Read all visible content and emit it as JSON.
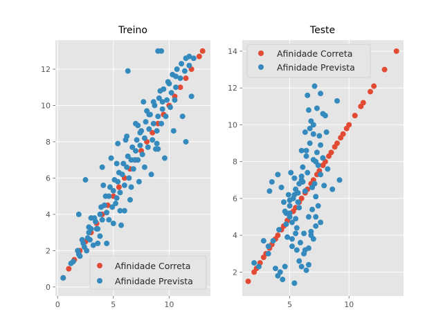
{
  "chart_data": [
    {
      "type": "scatter",
      "title": "Treino",
      "xlim": [
        -0.2,
        13.7
      ],
      "ylim": [
        -0.5,
        13.6
      ],
      "xticks": [
        0,
        5,
        10
      ],
      "yticks": [
        0,
        2,
        4,
        6,
        8,
        10,
        12
      ],
      "grid": true,
      "legend": {
        "placement": "lower-right"
      },
      "series": [
        {
          "name": "Afinidade Correta",
          "color": "#E24A33",
          "x": [
            0.5,
            1.0,
            1.5,
            2.0,
            2.5,
            3.0,
            3.5,
            4.0,
            4.5,
            5.0,
            5.5,
            6.0,
            6.5,
            7.0,
            7.5,
            8.0,
            8.5,
            9.0,
            9.5,
            10.0,
            10.5,
            11.0,
            11.5,
            12.0,
            12.7,
            13.0
          ],
          "y": [
            0.5,
            1.0,
            1.5,
            2.0,
            2.5,
            3.0,
            3.5,
            4.0,
            4.5,
            5.0,
            5.5,
            6.0,
            6.5,
            7.0,
            7.5,
            8.0,
            8.5,
            9.0,
            9.5,
            10.0,
            10.5,
            11.0,
            11.5,
            12.0,
            12.7,
            13.0
          ]
        },
        {
          "name": "Afinidade Prevista",
          "color": "#348ABD",
          "x": [
            0.5,
            1.2,
            1.8,
            2.3,
            2.7,
            3.0,
            3.4,
            3.8,
            4.2,
            4.6,
            5.0,
            5.4,
            5.8,
            6.2,
            6.6,
            7.0,
            7.4,
            7.8,
            8.2,
            8.6,
            9.0,
            9.4,
            9.8,
            10.2,
            10.6,
            11.0,
            11.4,
            11.8,
            12.2,
            1.9,
            2.4,
            2.9,
            3.5,
            4.0,
            4.4,
            4.9,
            5.3,
            5.6,
            6.0,
            6.4,
            6.8,
            7.2,
            7.6,
            8.1,
            8.5,
            8.9,
            9.3,
            9.7,
            10.1,
            10.5,
            2.2,
            2.8,
            3.3,
            3.9,
            4.3,
            4.7,
            5.1,
            5.5,
            5.9,
            6.3,
            6.7,
            7.1,
            7.5,
            7.9,
            8.3,
            8.7,
            9.1,
            9.5,
            9.9,
            10.3,
            10.7,
            11.1,
            11.5,
            6.3,
            9.0,
            9.3,
            11.8,
            7.2,
            11.5,
            7.7,
            8.8,
            9.0,
            6.0,
            4.0,
            4.8,
            5.4,
            6.2,
            7.0,
            8.0,
            8.6,
            9.2,
            10.0,
            10.6,
            2.5,
            3.0,
            3.6,
            4.4,
            5.0,
            5.2,
            5.7,
            6.5,
            7.3,
            8.4,
            9.6,
            10.4,
            11.2,
            12.0,
            1.4,
            2.0,
            2.6,
            3.2,
            3.8,
            4.6,
            5.6,
            6.6,
            7.8,
            8.9,
            1.9,
            2.8,
            3.6,
            4.1,
            5.3,
            6.1,
            6.9,
            7.4,
            8.2,
            9.4
          ],
          "y": [
            0.5,
            1.3,
            2.0,
            2.4,
            2.7,
            3.2,
            3.6,
            4.0,
            4.5,
            5.0,
            5.3,
            5.8,
            6.2,
            6.6,
            7.0,
            7.5,
            7.8,
            8.2,
            8.7,
            9.0,
            9.4,
            9.8,
            10.3,
            10.7,
            11.0,
            11.5,
            11.9,
            12.2,
            12.6,
            1.8,
            2.2,
            2.6,
            3.2,
            3.7,
            4.1,
            4.4,
            4.9,
            5.2,
            5.6,
            6.0,
            6.5,
            7.0,
            7.3,
            7.7,
            8.1,
            8.6,
            9.0,
            9.4,
            9.9,
            10.3,
            2.6,
            3.3,
            3.8,
            4.4,
            5.0,
            5.5,
            5.9,
            6.3,
            6.8,
            7.2,
            7.7,
            8.1,
            8.6,
            9.1,
            9.5,
            10.0,
            10.4,
            10.9,
            11.3,
            11.7,
            12.0,
            12.3,
            12.6,
            11.9,
            13.0,
            13.0,
            12.7,
            8.9,
            8.0,
            10.2,
            7.6,
            7.6,
            4.2,
            6.6,
            7.1,
            7.9,
            8.3,
            9.0,
            9.7,
            10.2,
            10.8,
            11.2,
            11.6,
            5.9,
            3.8,
            3.2,
            2.4,
            3.5,
            4.6,
            3.4,
            4.8,
            5.8,
            6.2,
            7.1,
            8.6,
            9.4,
            10.5,
            1.4,
            1.7,
            2.0,
            2.3,
            2.8,
            3.7,
            4.2,
            5.5,
            6.6,
            7.9,
            4.0,
            3.0,
            2.4,
            5.6,
            6.8,
            8.1,
            7.0,
            8.5,
            9.5,
            10.2
          ]
        }
      ]
    },
    {
      "type": "scatter",
      "title": "Teste",
      "xlim": [
        1.0,
        14.6
      ],
      "ylim": [
        0.7,
        14.6
      ],
      "xticks": [
        5,
        10
      ],
      "yticks": [
        2,
        4,
        6,
        8,
        10,
        12,
        14
      ],
      "grid": true,
      "legend": {
        "placement": "top-left"
      },
      "series": [
        {
          "name": "Afinidade Correta",
          "color": "#E24A33",
          "x": [
            1.5,
            2.0,
            2.2,
            2.5,
            2.8,
            3.0,
            3.3,
            3.5,
            3.8,
            4.0,
            4.3,
            4.5,
            4.8,
            5.0,
            5.3,
            5.5,
            5.8,
            6.0,
            6.3,
            6.5,
            6.8,
            7.0,
            7.3,
            7.5,
            7.8,
            8.0,
            8.3,
            8.5,
            8.8,
            9.0,
            9.3,
            9.5,
            9.8,
            10.0,
            10.5,
            11.0,
            11.2,
            11.8,
            12.1,
            13.0,
            14.0
          ],
          "y": [
            1.5,
            2.0,
            2.2,
            2.5,
            2.8,
            3.0,
            3.3,
            3.5,
            3.8,
            4.0,
            4.3,
            4.5,
            4.8,
            5.0,
            5.3,
            5.5,
            5.8,
            6.0,
            6.3,
            6.5,
            6.8,
            7.0,
            7.3,
            7.5,
            7.8,
            8.0,
            8.3,
            8.5,
            8.8,
            9.0,
            9.3,
            9.5,
            9.8,
            10.0,
            10.5,
            11.0,
            11.2,
            11.8,
            12.1,
            13.0,
            14.0
          ]
        },
        {
          "name": "Afinidade Prevista",
          "color": "#348ABD",
          "x": [
            2.0,
            2.4,
            2.8,
            3.2,
            3.3,
            3.5,
            3.8,
            4.0,
            4.2,
            4.4,
            4.6,
            4.8,
            5.0,
            5.2,
            5.4,
            5.6,
            5.8,
            6.0,
            6.2,
            6.4,
            6.6,
            6.8,
            7.0,
            7.2,
            7.4,
            7.6,
            7.8,
            8.0,
            8.2,
            8.6,
            9.0,
            9.2,
            5.1,
            5.4,
            5.7,
            6.0,
            6.3,
            6.6,
            6.9,
            7.2,
            7.5,
            7.8,
            5.5,
            5.8,
            6.1,
            6.4,
            6.7,
            7.0,
            7.3,
            7.6,
            7.9,
            5.2,
            5.6,
            6.2,
            6.8,
            7.1,
            6.5,
            7.0,
            4.7,
            5.0,
            5.3,
            5.8,
            6.1,
            6.4,
            6.7,
            7.0,
            7.3,
            7.6,
            4.5,
            4.9,
            5.2,
            5.5,
            5.9,
            6.3,
            6.6,
            6.9,
            7.2,
            4.0,
            4.3,
            4.7,
            5.0,
            5.4,
            5.7,
            6.0,
            6.3,
            6.6,
            7.1,
            7.4,
            6.8,
            7.2,
            3.2,
            3.6,
            4.1,
            4.6,
            5.0,
            5.5,
            6.0,
            6.5,
            7.0,
            7.6,
            8.1
          ],
          "y": [
            2.5,
            2.3,
            3.7,
            3.0,
            6.4,
            6.9,
            2.2,
            1.8,
            2.0,
            1.6,
            2.3,
            3.9,
            5.0,
            3.8,
            1.4,
            3.2,
            2.6,
            2.3,
            3.0,
            2.1,
            2.4,
            4.2,
            3.8,
            5.0,
            5.6,
            4.7,
            10.6,
            10.5,
            7.6,
            6.5,
            11.3,
            7.0,
            7.4,
            6.2,
            5.8,
            7.2,
            6.4,
            5.0,
            6.6,
            8.0,
            9.4,
            8.2,
            4.9,
            5.5,
            6.9,
            8.6,
            9.8,
            9.5,
            8.5,
            7.3,
            6.7,
            3.4,
            4.4,
            4.1,
            10.2,
            12.1,
            11.6,
            13.9,
            4.6,
            5.2,
            6.0,
            6.8,
            7.7,
            8.3,
            9.0,
            10.0,
            10.9,
            11.7,
            5.8,
            6.2,
            4.7,
            4.1,
            3.6,
            3.2,
            3.3,
            5.4,
            6.1,
            7.3,
            6.6,
            5.2,
            5.9,
            7.1,
            6.3,
            8.6,
            9.6,
            10.8,
            6.8,
            7.8,
            4.0,
            4.5,
            3.4,
            3.7,
            4.3,
            5.3,
            5.6,
            6.5,
            7.0,
            7.4,
            8.1,
            8.9,
            9.6
          ]
        }
      ]
    }
  ]
}
